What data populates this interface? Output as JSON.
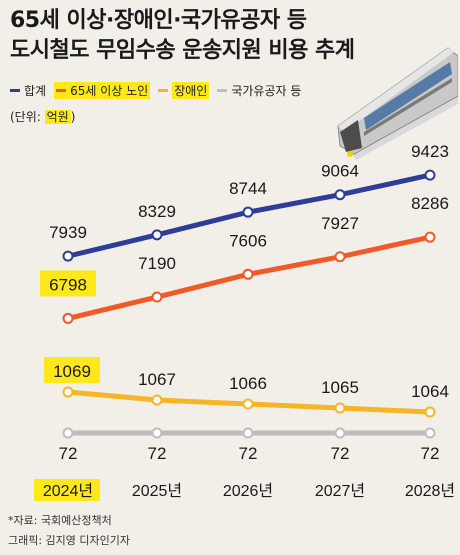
{
  "title_lines": [
    "65세 이상·장애인·국가유공자 등",
    "도시철도 무임수송 운송지원 비용 추계"
  ],
  "legend": [
    {
      "label": "합계",
      "color": "#2e3e96"
    },
    {
      "label": "65세 이상 노인",
      "color": "#f05a28"
    },
    {
      "label": "장애인",
      "color": "#f5b526"
    },
    {
      "label": "국가유공자 등",
      "color": "#bdbdbd"
    }
  ],
  "unit_prefix": "(단위: ",
  "unit_value": "억원",
  "unit_suffix": ")",
  "source": "*자료: 국회예산정책처",
  "credit": "그래픽: 김지영 디자인기자",
  "highlight_color": "#ffe81a",
  "chart_data": {
    "type": "line",
    "categories": [
      "2024년",
      "2025년",
      "2026년",
      "2027년",
      "2028년"
    ],
    "series": [
      {
        "name": "합계",
        "color": "#2e3e96",
        "values": [
          7939,
          8329,
          8744,
          9064,
          9423
        ]
      },
      {
        "name": "65세 이상 노인",
        "color": "#f05a28",
        "values": [
          6798,
          7190,
          7606,
          7927,
          8286
        ]
      },
      {
        "name": "장애인",
        "color": "#f5b526",
        "values": [
          1069,
          1067,
          1066,
          1065,
          1064
        ]
      },
      {
        "name": "국가유공자 등",
        "color": "#bdbdbd",
        "values": [
          72,
          72,
          72,
          72,
          72
        ]
      }
    ],
    "unit": "억원",
    "highlighted_points": [
      {
        "series": 1,
        "index": 0
      },
      {
        "series": 2,
        "index": 0
      }
    ],
    "highlighted_category": 0
  }
}
